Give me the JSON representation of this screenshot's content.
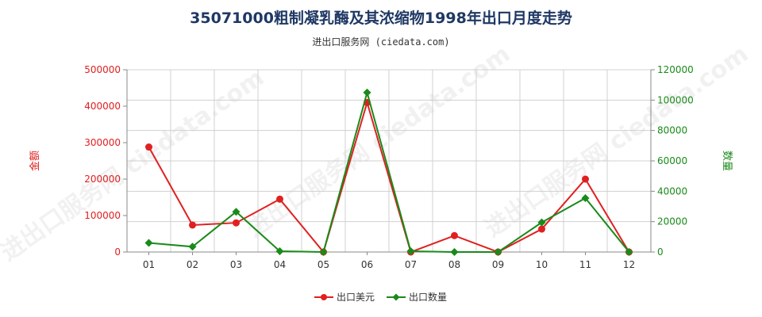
{
  "title": "35071000粗制凝乳酶及其浓缩物1998年出口月度走势",
  "subtitle": "进出口服务网 (ciedata.com)",
  "chart_data": {
    "type": "line",
    "categories": [
      "01",
      "02",
      "03",
      "04",
      "05",
      "06",
      "07",
      "08",
      "09",
      "10",
      "11",
      "12"
    ],
    "left_axis": {
      "label": "金额",
      "ylim": [
        0,
        500000
      ],
      "ticks": [
        "0",
        "100000",
        "200000",
        "300000",
        "400000",
        "500000"
      ],
      "color": "#e02020"
    },
    "right_axis": {
      "label": "数量",
      "ylim": [
        0,
        120000
      ],
      "ticks": [
        "0",
        "20000",
        "40000",
        "60000",
        "80000",
        "100000",
        "120000"
      ],
      "color": "#1a8a1a"
    },
    "series": [
      {
        "name": "出口美元",
        "axis": "left",
        "color": "#e02020",
        "values": [
          288000,
          74000,
          80000,
          145000,
          0,
          410000,
          0,
          45000,
          0,
          63000,
          200000,
          0
        ]
      },
      {
        "name": "出口数量",
        "axis": "right",
        "color": "#1a8a1a",
        "values": [
          6000,
          3500,
          26500,
          500,
          0,
          105000,
          500,
          0,
          0,
          19500,
          35500,
          0
        ]
      }
    ],
    "grid": true,
    "legend": "bottom-center"
  }
}
